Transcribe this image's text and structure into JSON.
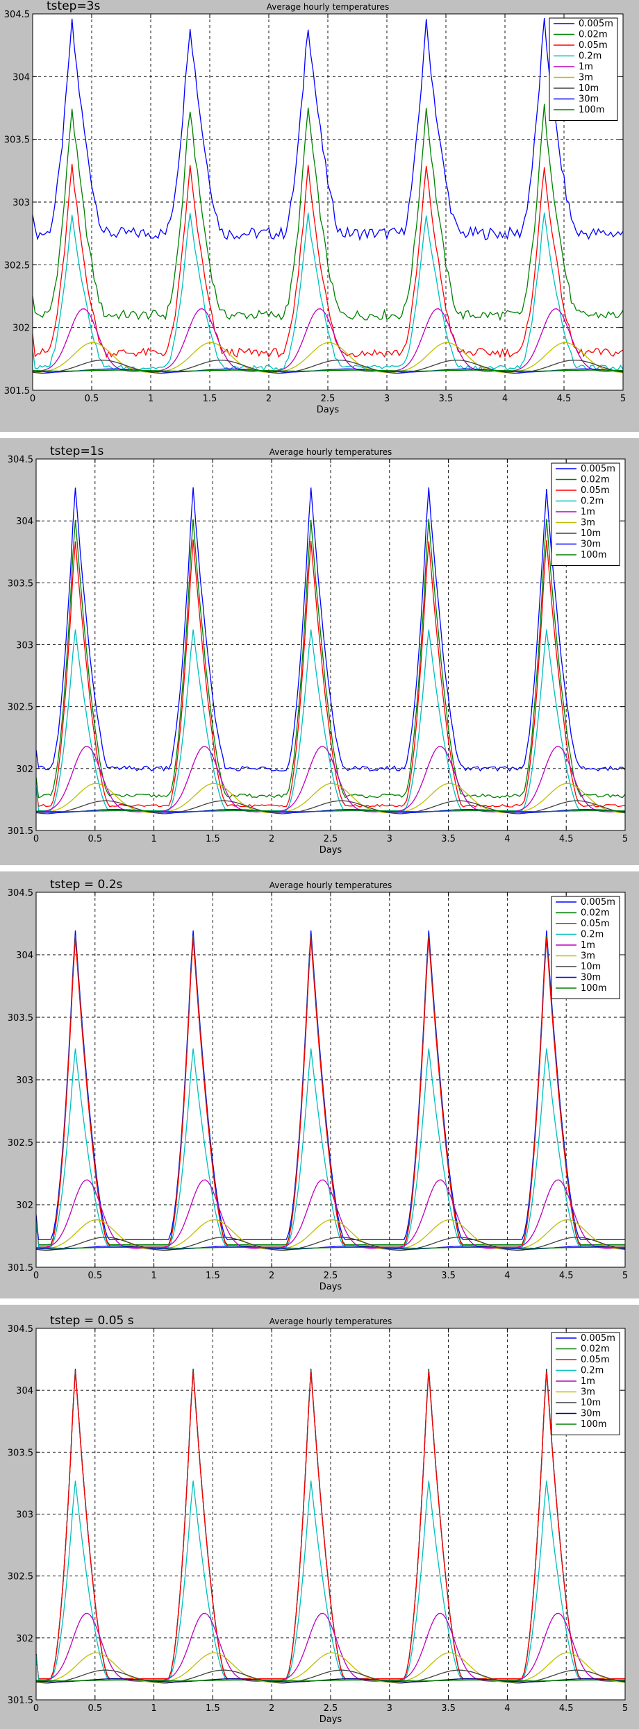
{
  "chart_data": [
    {
      "type": "line",
      "label": "tstep=3s",
      "title": "Average hourly temperatures",
      "xlabel": "Days",
      "ylabel": "",
      "xlim": [
        0,
        5
      ],
      "ylim": [
        301.5,
        304.5
      ],
      "xticks": [
        "0",
        "0.5",
        "1",
        "1.5",
        "2",
        "2.5",
        "3",
        "3.5",
        "4",
        "4.5",
        "5"
      ],
      "yticks": [
        "301.5",
        "302",
        "302.5",
        "303",
        "303.5",
        "304",
        "304.5"
      ],
      "grid": true,
      "legend_position": "top-right",
      "series": [
        {
          "name": "0.005m",
          "color": "#0000ff",
          "base": 302.75,
          "peak": 304.45,
          "wobble": 0.05
        },
        {
          "name": "0.02m",
          "color": "#008000",
          "base": 302.1,
          "peak": 303.78,
          "wobble": 0.04
        },
        {
          "name": "0.05m",
          "color": "#ff0000",
          "base": 301.8,
          "peak": 303.3,
          "wobble": 0.035
        },
        {
          "name": "0.2m",
          "color": "#00bfbf",
          "base": 301.68,
          "peak": 302.92,
          "wobble": 0.02
        },
        {
          "name": "1m",
          "color": "#bf00bf",
          "base": 301.65,
          "peak": 302.15,
          "wobble": 0
        },
        {
          "name": "3m",
          "color": "#bfbf00",
          "base": 301.64,
          "peak": 301.88,
          "wobble": 0
        },
        {
          "name": "10m",
          "color": "#404040",
          "base": 301.63,
          "peak": 301.74,
          "wobble": 0
        },
        {
          "name": "30m",
          "color": "#0000ff",
          "base": 301.64,
          "peak": 301.67,
          "wobble": 0
        },
        {
          "name": "100m",
          "color": "#008000",
          "base": 301.65,
          "peak": 301.66,
          "wobble": 0
        }
      ]
    },
    {
      "type": "line",
      "label": "tstep=1s",
      "title": "Average hourly temperatures",
      "xlabel": "Days",
      "ylabel": "",
      "xlim": [
        0,
        5
      ],
      "ylim": [
        301.5,
        304.5
      ],
      "xticks": [
        "0",
        "0.5",
        "1",
        "1.5",
        "2",
        "2.5",
        "3",
        "3.5",
        "4",
        "4.5",
        "5"
      ],
      "yticks": [
        "301.5",
        "302",
        "302.5",
        "303",
        "303.5",
        "304",
        "304.5"
      ],
      "grid": true,
      "legend_position": "top-right",
      "series": [
        {
          "name": "0.005m",
          "color": "#0000ff",
          "base": 302.0,
          "peak": 304.3,
          "wobble": 0.02
        },
        {
          "name": "0.02m",
          "color": "#008000",
          "base": 301.78,
          "peak": 304.05,
          "wobble": 0.015
        },
        {
          "name": "0.05m",
          "color": "#ff0000",
          "base": 301.7,
          "peak": 303.88,
          "wobble": 0.01
        },
        {
          "name": "0.2m",
          "color": "#00bfbf",
          "base": 301.66,
          "peak": 303.15,
          "wobble": 0
        },
        {
          "name": "1m",
          "color": "#bf00bf",
          "base": 301.65,
          "peak": 302.18,
          "wobble": 0
        },
        {
          "name": "3m",
          "color": "#bfbf00",
          "base": 301.64,
          "peak": 301.88,
          "wobble": 0
        },
        {
          "name": "10m",
          "color": "#404040",
          "base": 301.63,
          "peak": 301.74,
          "wobble": 0
        },
        {
          "name": "30m",
          "color": "#0000ff",
          "base": 301.64,
          "peak": 301.67,
          "wobble": 0
        },
        {
          "name": "100m",
          "color": "#008000",
          "base": 301.65,
          "peak": 301.66,
          "wobble": 0
        }
      ]
    },
    {
      "type": "line",
      "label": "tstep = 0.2s",
      "title": "Average hourly temperatures",
      "xlabel": "Days",
      "ylabel": "",
      "xlim": [
        0,
        5
      ],
      "ylim": [
        301.5,
        304.5
      ],
      "xticks": [
        "0",
        "0.5",
        "1",
        "1.5",
        "2",
        "2.5",
        "3",
        "3.5",
        "4",
        "4.5",
        "5"
      ],
      "yticks": [
        "301.5",
        "302",
        "302.5",
        "303",
        "303.5",
        "304",
        "304.5"
      ],
      "grid": true,
      "legend_position": "top-right",
      "series": [
        {
          "name": "0.005m",
          "color": "#0000ff",
          "base": 301.72,
          "peak": 304.24,
          "wobble": 0
        },
        {
          "name": "0.02m",
          "color": "#008000",
          "base": 301.68,
          "peak": 304.2,
          "wobble": 0
        },
        {
          "name": "0.05m",
          "color": "#ff0000",
          "base": 301.67,
          "peak": 304.18,
          "wobble": 0
        },
        {
          "name": "0.2m",
          "color": "#00bfbf",
          "base": 301.66,
          "peak": 303.28,
          "wobble": 0
        },
        {
          "name": "1m",
          "color": "#bf00bf",
          "base": 301.65,
          "peak": 302.2,
          "wobble": 0
        },
        {
          "name": "3m",
          "color": "#bfbf00",
          "base": 301.64,
          "peak": 301.88,
          "wobble": 0
        },
        {
          "name": "10m",
          "color": "#404040",
          "base": 301.63,
          "peak": 301.74,
          "wobble": 0
        },
        {
          "name": "30m",
          "color": "#0000ff",
          "base": 301.64,
          "peak": 301.67,
          "wobble": 0
        },
        {
          "name": "100m",
          "color": "#008000",
          "base": 301.65,
          "peak": 301.66,
          "wobble": 0
        }
      ]
    },
    {
      "type": "line",
      "label": "tstep = 0.05 s",
      "title": "Average hourly temperatures",
      "xlabel": "Days",
      "ylabel": "",
      "xlim": [
        0,
        5
      ],
      "ylim": [
        301.5,
        304.5
      ],
      "xticks": [
        "0",
        "0.5",
        "1",
        "1.5",
        "2",
        "2.5",
        "3",
        "3.5",
        "4",
        "4.5",
        "5"
      ],
      "yticks": [
        "301.5",
        "302",
        "302.5",
        "303",
        "303.5",
        "304",
        "304.5"
      ],
      "grid": true,
      "legend_position": "top-right",
      "series": [
        {
          "name": "0.005m",
          "color": "#0000ff",
          "base": 301.67,
          "peak": 304.22,
          "wobble": 0
        },
        {
          "name": "0.02m",
          "color": "#008000",
          "base": 301.67,
          "peak": 304.21,
          "wobble": 0
        },
        {
          "name": "0.05m",
          "color": "#ff0000",
          "base": 301.67,
          "peak": 304.2,
          "wobble": 0
        },
        {
          "name": "0.2m",
          "color": "#00bfbf",
          "base": 301.66,
          "peak": 303.3,
          "wobble": 0
        },
        {
          "name": "1m",
          "color": "#bf00bf",
          "base": 301.65,
          "peak": 302.2,
          "wobble": 0
        },
        {
          "name": "3m",
          "color": "#bfbf00",
          "base": 301.64,
          "peak": 301.88,
          "wobble": 0
        },
        {
          "name": "10m",
          "color": "#404040",
          "base": 301.63,
          "peak": 301.74,
          "wobble": 0
        },
        {
          "name": "30m",
          "color": "#000080",
          "base": 301.64,
          "peak": 301.67,
          "wobble": 0
        },
        {
          "name": "100m",
          "color": "#008000",
          "base": 301.65,
          "peak": 301.66,
          "wobble": 0
        }
      ]
    }
  ]
}
